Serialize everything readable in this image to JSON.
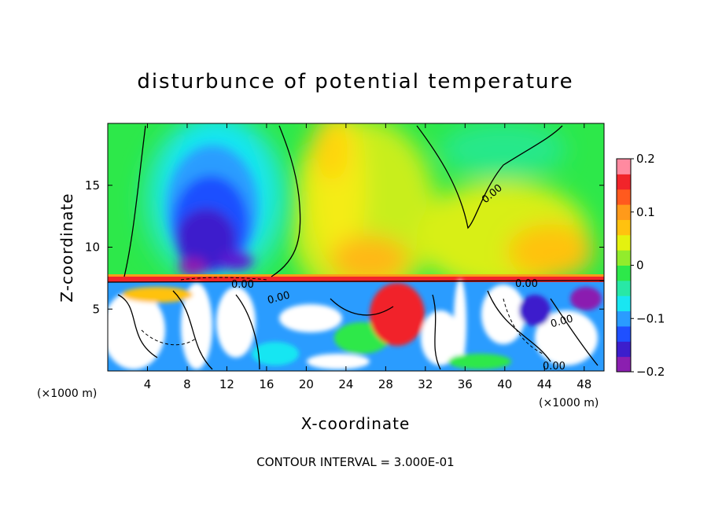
{
  "chart_data": {
    "type": "heatmap",
    "title": "disturbunce of potential temperature",
    "xlabel": "X-coordinate",
    "ylabel": "Z-coordinate",
    "x_unit_left": "(×1000 m)",
    "x_unit_right": "(×1000 m)",
    "xlim": [
      0,
      50
    ],
    "ylim": [
      0,
      20
    ],
    "x_ticks": [
      4,
      8,
      12,
      16,
      20,
      24,
      28,
      32,
      36,
      40,
      44,
      48
    ],
    "y_ticks": [
      5,
      10,
      15
    ],
    "colorbar": {
      "min": -0.2,
      "max": 0.2,
      "tick_values": [
        0.2,
        0.1,
        0,
        -0.1,
        -0.2
      ],
      "tick_labels": [
        "0.2",
        "0.1",
        "0",
        "−0.1",
        "−0.2"
      ],
      "colors": [
        "#8b1fb0",
        "#3c1ecc",
        "#1f50ff",
        "#2a9cff",
        "#19e6f2",
        "#28e8a6",
        "#2de84a",
        "#92ec2c",
        "#e4f20f",
        "#ffc20f",
        "#ff9a1a",
        "#ff5a1e",
        "#f1242a",
        "#ff8aa0"
      ]
    },
    "contour_interval": "CONTOUR INTERVAL = 3.000E-01",
    "contour_labels": [
      "0.00",
      "0.00",
      "0.00",
      "0.00",
      "0.00",
      "0.00"
    ],
    "field_regions": [
      {
        "x": [
          0,
          50
        ],
        "z": [
          7.3,
          20
        ],
        "value": 0.0
      },
      {
        "x": [
          3,
          17
        ],
        "z": [
          7.3,
          20
        ],
        "value": -0.1
      },
      {
        "x": [
          5.5,
          15
        ],
        "z": [
          7.3,
          14
        ],
        "value": -0.17
      },
      {
        "x": [
          20,
          44
        ],
        "z": [
          7.3,
          20
        ],
        "value": 0.06
      },
      {
        "x": [
          24,
          26
        ],
        "z": [
          12,
          20
        ],
        "value": 0.09
      },
      {
        "x": [
          36,
          44
        ],
        "z": [
          7.3,
          12
        ],
        "value": 0.12
      },
      {
        "x": [
          0,
          50
        ],
        "z": [
          7.0,
          7.4
        ],
        "value": 0.2
      }
    ]
  }
}
